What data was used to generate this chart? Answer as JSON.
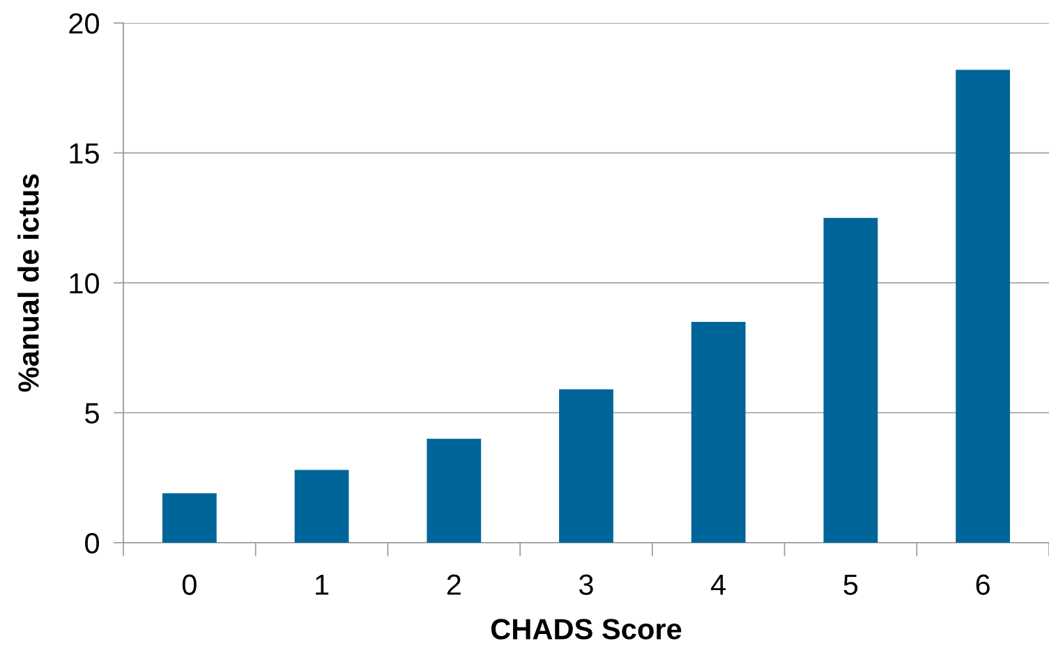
{
  "chart_data": {
    "type": "bar",
    "xlabel": "CHADS Score",
    "ylabel": "%anual de ictus",
    "categories": [
      "0",
      "1",
      "2",
      "3",
      "4",
      "5",
      "6"
    ],
    "values": [
      1.9,
      2.8,
      4.0,
      5.9,
      8.5,
      12.5,
      18.2
    ],
    "color": "#006699",
    "ylim": [
      0,
      20
    ],
    "yticks": [
      0,
      5,
      10,
      15,
      20
    ],
    "grid": "y",
    "legend": false
  }
}
